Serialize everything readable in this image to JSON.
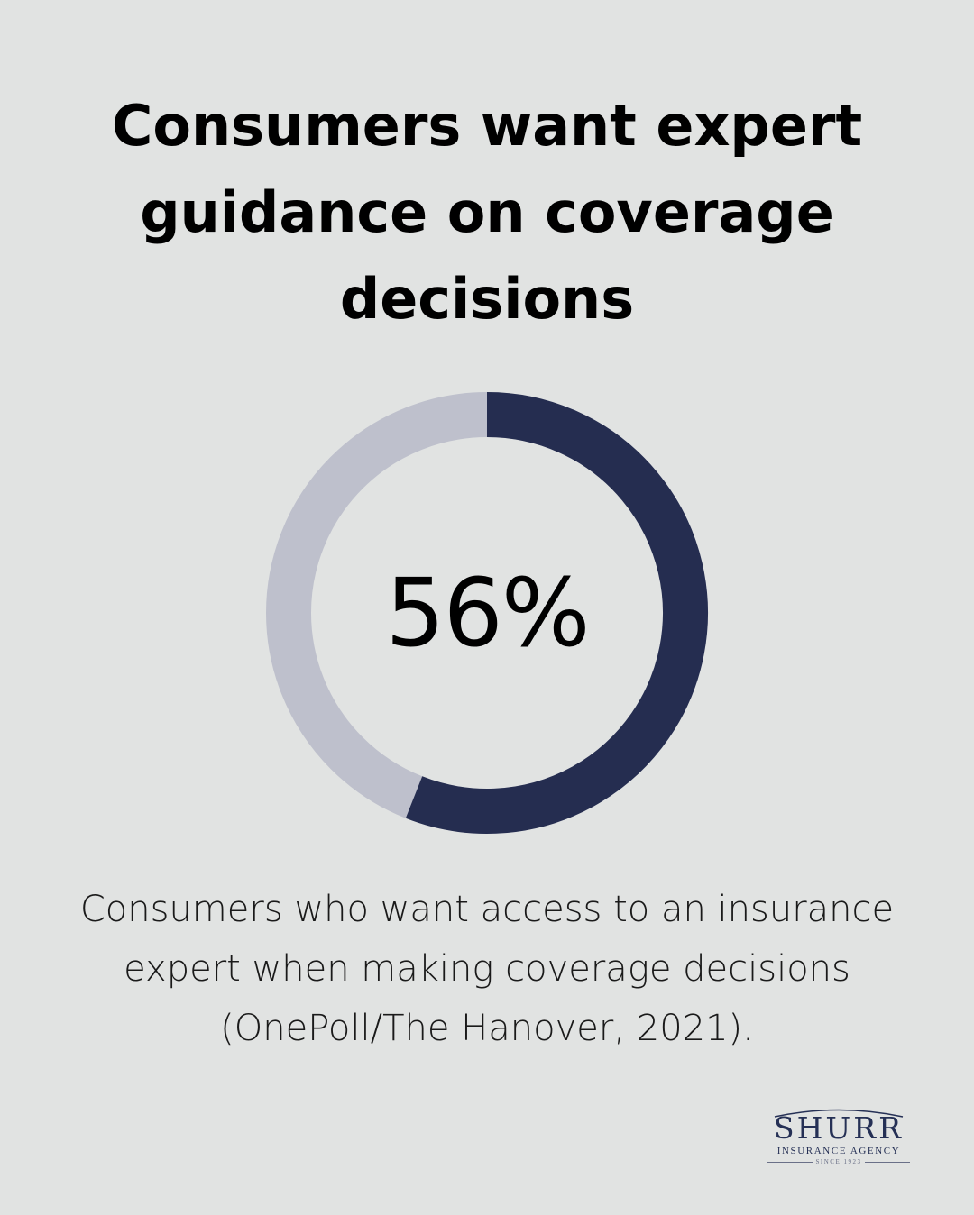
{
  "title": "Consumers want expert guidance on coverage decisions",
  "chart_data": {
    "type": "pie",
    "variant": "donut",
    "value": 56,
    "total": 100,
    "center_label": "56%",
    "colors": {
      "value": "#252d50",
      "remainder": "#bec0cc"
    }
  },
  "caption": "Consumers who want access to an insurance expert when making coverage decisions (OnePoll/The Hanover, 2021).",
  "logo": {
    "name": "SHURR",
    "subtitle": "INSURANCE AGENCY",
    "since": "SINCE 1923"
  }
}
